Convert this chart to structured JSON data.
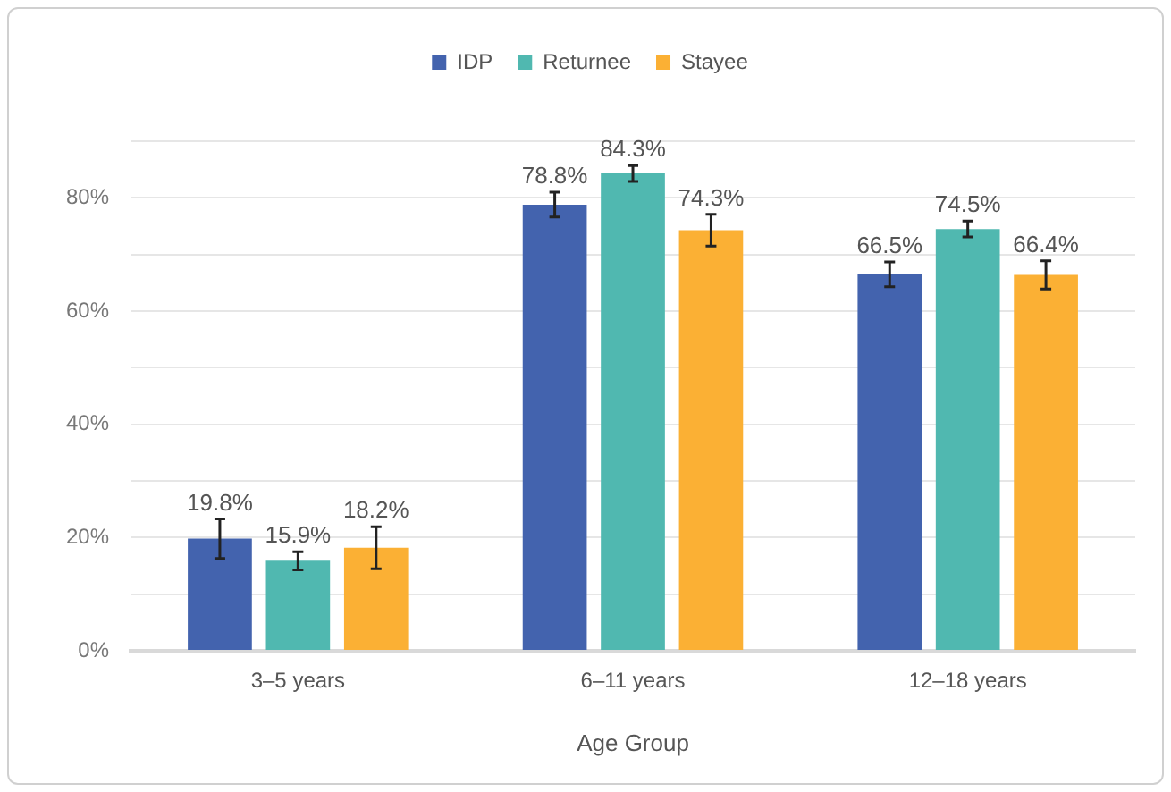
{
  "chart_data": {
    "type": "bar",
    "xlabel": "Age Group",
    "categories": [
      "3–5 years",
      "6–11 years",
      "12–18 years"
    ],
    "series": [
      {
        "name": "IDP",
        "color": "#4363ae",
        "values": [
          19.8,
          78.8,
          66.5
        ],
        "errors": [
          3.5,
          2.2,
          2.2
        ],
        "value_labels": [
          "19.8%",
          "78.8%",
          "66.5%"
        ]
      },
      {
        "name": "Returnee",
        "color": "#50b8b0",
        "values": [
          15.9,
          84.3,
          74.5
        ],
        "errors": [
          1.6,
          1.4,
          1.4
        ],
        "value_labels": [
          "15.9%",
          "84.3%",
          "74.5%"
        ]
      },
      {
        "name": "Stayee",
        "color": "#fbb034",
        "values": [
          18.2,
          74.3,
          66.4
        ],
        "errors": [
          3.7,
          2.8,
          2.5
        ],
        "value_labels": [
          "18.2%",
          "74.3%",
          "66.4%"
        ]
      }
    ],
    "ylim": [
      0,
      90
    ],
    "yticks": [
      {
        "value": 0,
        "label": "0%"
      },
      {
        "value": 10,
        "label": null
      },
      {
        "value": 20,
        "label": "20%"
      },
      {
        "value": 30,
        "label": null
      },
      {
        "value": 40,
        "label": "40%"
      },
      {
        "value": 50,
        "label": null
      },
      {
        "value": 60,
        "label": "60%"
      },
      {
        "value": 70,
        "label": null
      },
      {
        "value": 80,
        "label": "80%"
      },
      {
        "value": 90,
        "label": null
      }
    ],
    "grid": "y",
    "legend": "top"
  }
}
